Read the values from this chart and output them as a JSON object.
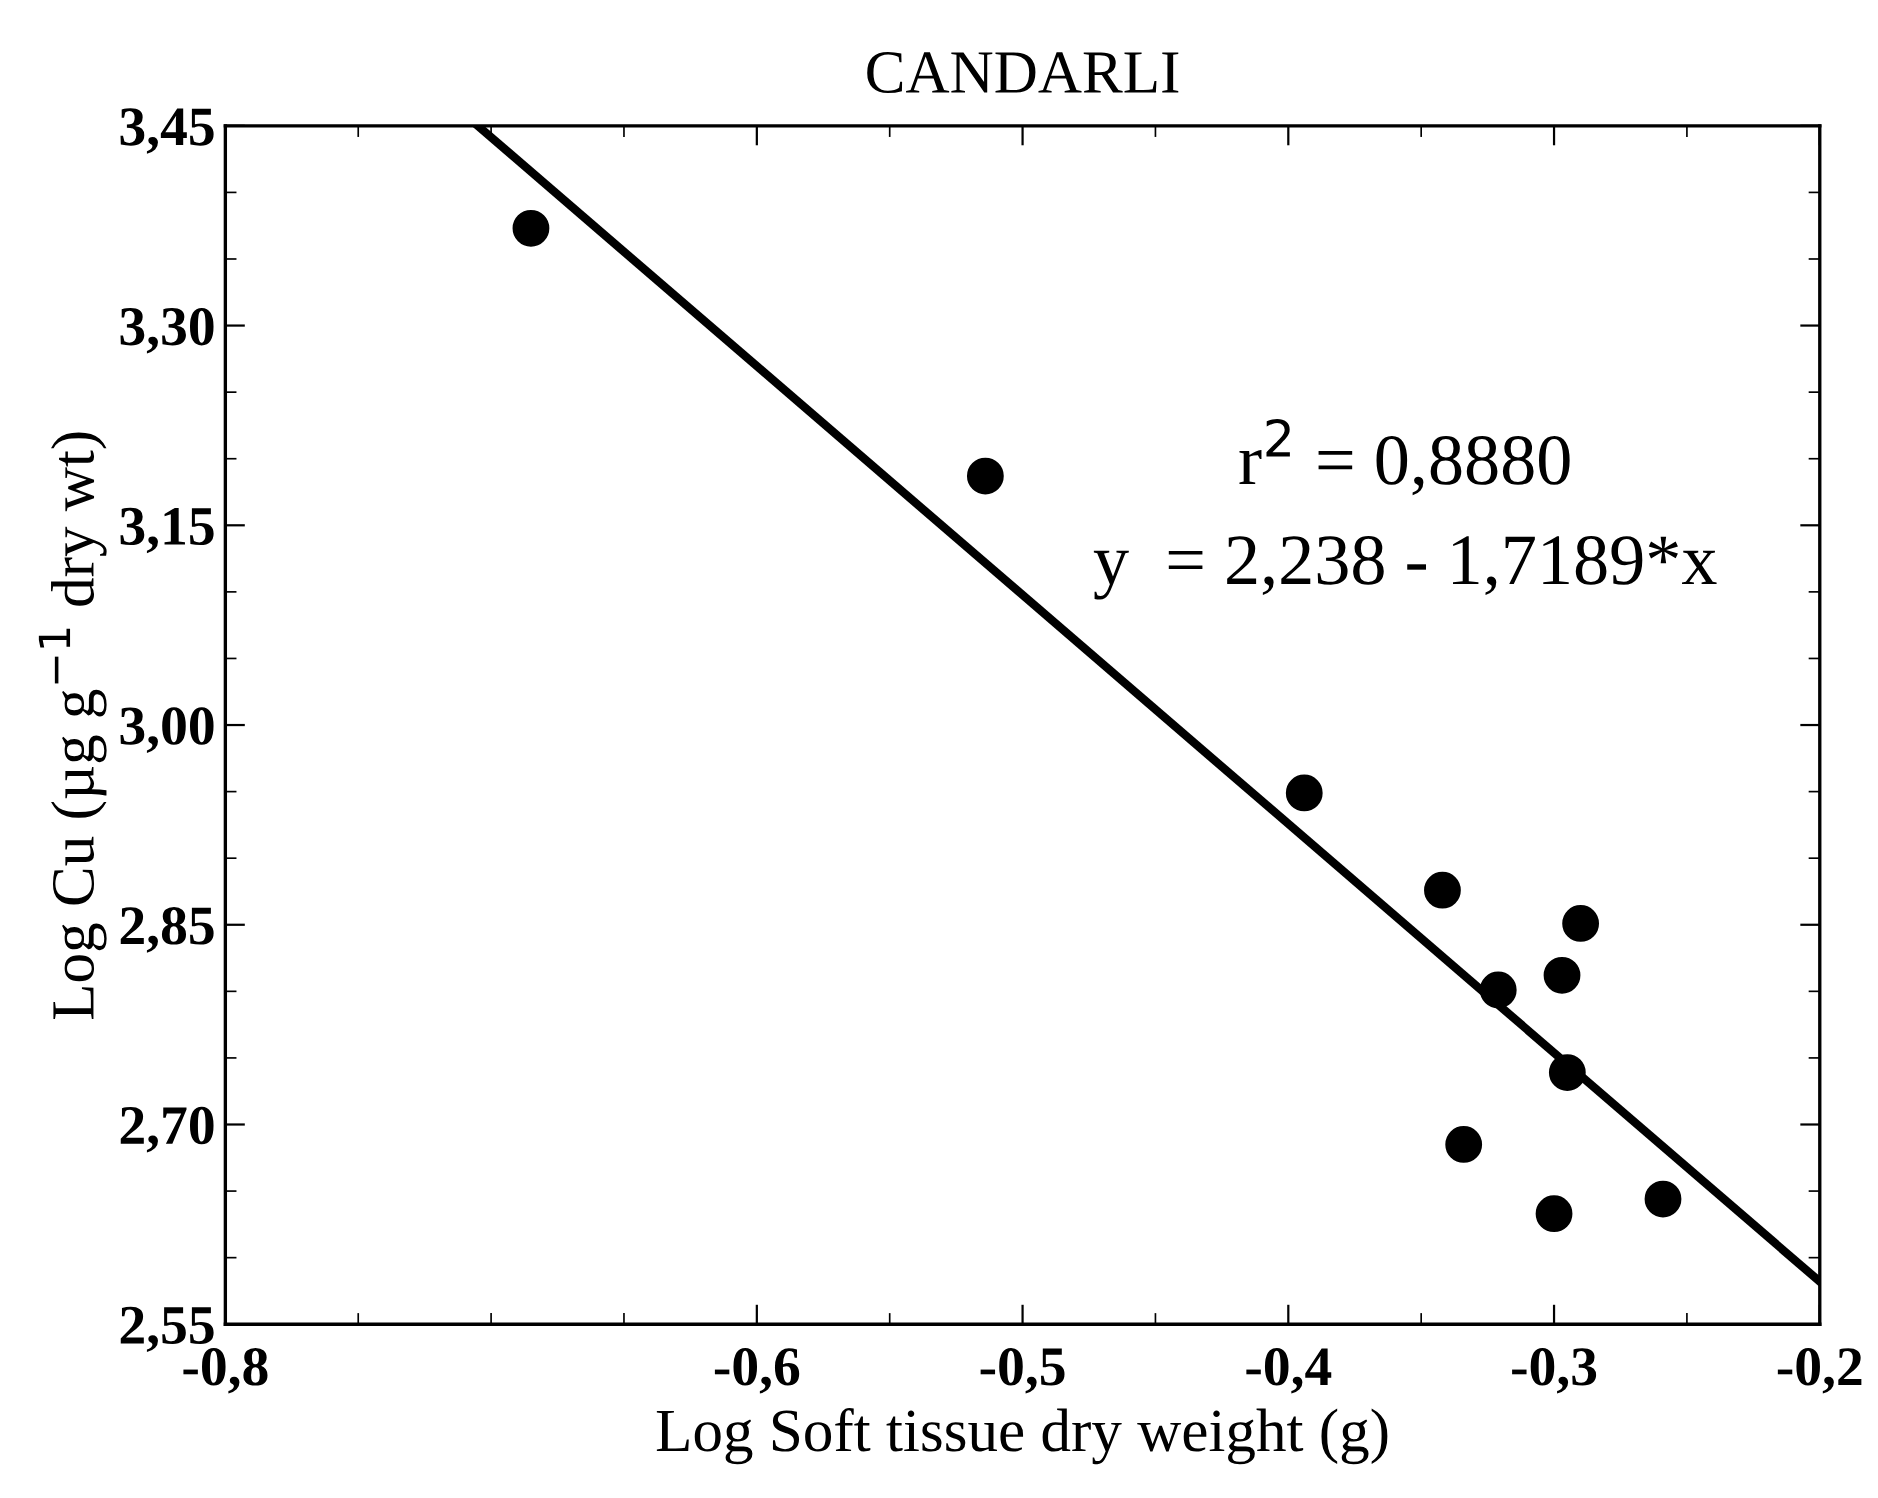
{
  "chart_data": {
    "type": "scatter",
    "title": "CANDARLI",
    "xlabel": "Log Soft tissue dry weight (g)",
    "ylabel": "Log Cu (µg g$^{−1}$ dry wt)",
    "series": [
      {
        "color": "#000000",
        "marker": "circle",
        "x": [
          -0.685,
          -0.514,
          -0.394,
          -0.342,
          -0.29,
          -0.297,
          -0.321,
          -0.295,
          -0.334,
          -0.3,
          -0.259
        ],
        "values": [
          3.373,
          3.187,
          2.949,
          2.876,
          2.851,
          2.812,
          2.801,
          2.739,
          2.685,
          2.633,
          2.644
        ]
      },
      {
        "type": "line",
        "color": "#000000",
        "marker": "none",
        "line_style": "solid",
        "x": [
          -0.705,
          -0.2
        ],
        "values": [
          3.45,
          2.582
        ]
      }
    ],
    "annotations": [
      "r$^{2}$ = 0,8880",
      "y  = 2,238 - 1,7189*x"
    ],
    "xlim": [
      -0.8,
      -0.2
    ],
    "xticks": [
      {
        "value": -0.8,
        "label": "-0,8"
      },
      {
        "value": -0.6,
        "label": "-0,6"
      },
      {
        "value": -0.5,
        "label": "-0,5"
      },
      {
        "value": -0.4,
        "label": "-0,4"
      },
      {
        "value": -0.3,
        "label": "-0,3"
      },
      {
        "value": -0.2,
        "label": "-0,2"
      }
    ],
    "ylim": [
      2.55,
      3.45
    ],
    "yticks": [
      {
        "value": 2.55,
        "label": "2,55"
      },
      {
        "value": 2.7,
        "label": "2,70"
      },
      {
        "value": 2.85,
        "label": "2,85"
      },
      {
        "value": 3.0,
        "label": "3,00"
      },
      {
        "value": 3.15,
        "label": "3,15"
      },
      {
        "value": 3.3,
        "label": "3,30"
      },
      {
        "value": 3.45,
        "label": "3,45"
      }
    ],
    "grid": false,
    "legend": false
  }
}
